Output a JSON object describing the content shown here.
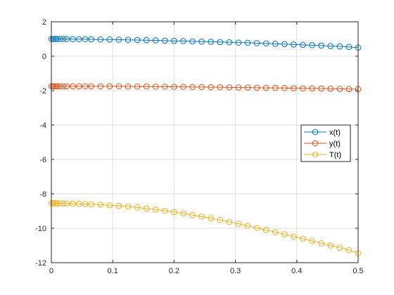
{
  "chart_data": {
    "type": "line",
    "xlim": [
      0,
      0.5
    ],
    "ylim": [
      -12,
      2
    ],
    "xticks": [
      0,
      0.1,
      0.2,
      0.3,
      0.4,
      0.5
    ],
    "yticks": [
      2,
      0,
      -2,
      -4,
      -6,
      -8,
      -10,
      -12
    ],
    "grid": true,
    "legend_position": "right",
    "marker": "circle",
    "x": [
      0,
      0.0025,
      0.005,
      0.0075,
      0.01,
      0.015,
      0.02,
      0.025,
      0.035,
      0.045,
      0.055,
      0.065,
      0.08,
      0.095,
      0.11,
      0.125,
      0.14,
      0.155,
      0.17,
      0.185,
      0.2,
      0.215,
      0.23,
      0.245,
      0.26,
      0.275,
      0.29,
      0.305,
      0.32,
      0.335,
      0.35,
      0.365,
      0.38,
      0.395,
      0.41,
      0.425,
      0.44,
      0.455,
      0.47,
      0.485,
      0.5
    ],
    "series": [
      {
        "name": "x(t)",
        "color": "#0072BD",
        "values": [
          1.0,
          1.0,
          1.0,
          1.0,
          1.0,
          1.0,
          1.0,
          1.0,
          0.99,
          0.99,
          0.99,
          0.98,
          0.97,
          0.97,
          0.96,
          0.95,
          0.94,
          0.93,
          0.92,
          0.9,
          0.89,
          0.88,
          0.86,
          0.85,
          0.84,
          0.82,
          0.81,
          0.79,
          0.78,
          0.76,
          0.74,
          0.72,
          0.7,
          0.68,
          0.66,
          0.64,
          0.62,
          0.59,
          0.57,
          0.54,
          0.5
        ]
      },
      {
        "name": "y(t)",
        "color": "#D95319",
        "values": [
          -1.75,
          -1.75,
          -1.75,
          -1.75,
          -1.75,
          -1.75,
          -1.75,
          -1.75,
          -1.75,
          -1.75,
          -1.75,
          -1.75,
          -1.75,
          -1.75,
          -1.75,
          -1.76,
          -1.76,
          -1.76,
          -1.77,
          -1.77,
          -1.78,
          -1.78,
          -1.79,
          -1.79,
          -1.8,
          -1.8,
          -1.81,
          -1.82,
          -1.82,
          -1.83,
          -1.84,
          -1.84,
          -1.85,
          -1.86,
          -1.87,
          -1.87,
          -1.88,
          -1.89,
          -1.9,
          -1.91,
          -1.92
        ]
      },
      {
        "name": "T(t)",
        "color": "#EDB120",
        "values": [
          -8.55,
          -8.55,
          -8.55,
          -8.55,
          -8.55,
          -8.55,
          -8.56,
          -8.56,
          -8.57,
          -8.58,
          -8.59,
          -8.61,
          -8.63,
          -8.66,
          -8.7,
          -8.74,
          -8.79,
          -8.85,
          -8.91,
          -8.98,
          -9.06,
          -9.14,
          -9.23,
          -9.32,
          -9.42,
          -9.52,
          -9.63,
          -9.74,
          -9.86,
          -9.98,
          -10.1,
          -10.22,
          -10.35,
          -10.48,
          -10.61,
          -10.74,
          -10.87,
          -11.0,
          -11.13,
          -11.27,
          -11.45
        ]
      }
    ]
  }
}
